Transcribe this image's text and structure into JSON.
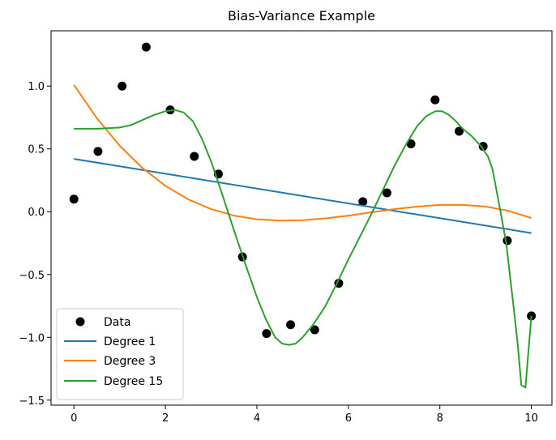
{
  "chart_data": {
    "type": "line",
    "title": "Bias-Variance Example",
    "xlabel": "",
    "ylabel": "",
    "xlim": [
      -0.5,
      10.45
    ],
    "ylim": [
      -1.54,
      1.44
    ],
    "grid": false,
    "legend_position": "lower-left",
    "x_ticks": [
      0,
      2,
      4,
      6,
      8,
      10
    ],
    "x_tick_labels": [
      "0",
      "2",
      "4",
      "6",
      "8",
      "10"
    ],
    "y_ticks": [
      1.0,
      0.5,
      0.0,
      -0.5,
      -1.0,
      -1.5
    ],
    "y_tick_labels": [
      "1.0",
      "0.5",
      "0.0",
      "−0.5",
      "−1.0",
      "−1.5"
    ],
    "scatter": {
      "name": "Data",
      "color": "#000000",
      "x": [
        0,
        0.526,
        1.053,
        1.579,
        2.105,
        2.632,
        3.158,
        3.684,
        4.211,
        4.737,
        5.263,
        5.789,
        6.316,
        6.842,
        7.368,
        7.895,
        8.421,
        8.947,
        9.474,
        10
      ],
      "y": [
        0.1,
        0.48,
        1.0,
        1.31,
        0.81,
        0.44,
        0.3,
        -0.36,
        -0.97,
        -0.9,
        -0.94,
        -0.57,
        0.08,
        0.15,
        0.54,
        0.89,
        0.64,
        0.52,
        -0.23,
        -0.83
      ]
    },
    "series": [
      {
        "name": "Degree 1",
        "color": "#1f77b4",
        "x": [
          0,
          10
        ],
        "y": [
          0.42,
          -0.17
        ]
      },
      {
        "name": "Degree 3",
        "color": "#ff7f0e",
        "x": [
          0,
          0.5,
          1,
          1.5,
          2,
          2.5,
          3,
          3.5,
          4,
          4.5,
          5,
          5.5,
          6,
          6.5,
          7,
          7.5,
          8,
          8.5,
          9,
          9.5,
          10
        ],
        "y": [
          1.01,
          0.745,
          0.525,
          0.347,
          0.206,
          0.098,
          0.02,
          -0.031,
          -0.06,
          -0.071,
          -0.068,
          -0.053,
          -0.031,
          -0.005,
          0.02,
          0.04,
          0.054,
          0.054,
          0.041,
          0.007,
          -0.05
        ]
      },
      {
        "name": "Degree 15",
        "color": "#2ca02c",
        "x": [
          0,
          0.5,
          1,
          1.25,
          1.5,
          1.75,
          2,
          2.2,
          2.4,
          2.6,
          2.8,
          3,
          3.25,
          3.5,
          3.75,
          4,
          4.2,
          4.4,
          4.55,
          4.7,
          4.85,
          5,
          5.25,
          5.5,
          5.75,
          6,
          6.25,
          6.5,
          6.75,
          7,
          7.25,
          7.5,
          7.7,
          7.9,
          8.05,
          8.2,
          8.35,
          8.5,
          8.7,
          8.9,
          9.05,
          9.15,
          9.3,
          9.45,
          9.6,
          9.7,
          9.78,
          9.87,
          10
        ],
        "y": [
          0.66,
          0.66,
          0.67,
          0.69,
          0.73,
          0.77,
          0.8,
          0.81,
          0.79,
          0.72,
          0.58,
          0.4,
          0.13,
          -0.15,
          -0.42,
          -0.68,
          -0.86,
          -1.0,
          -1.05,
          -1.06,
          -1.05,
          -1.0,
          -0.89,
          -0.75,
          -0.57,
          -0.38,
          -0.2,
          -0.02,
          0.17,
          0.36,
          0.53,
          0.68,
          0.76,
          0.8,
          0.8,
          0.77,
          0.72,
          0.66,
          0.6,
          0.52,
          0.44,
          0.34,
          0.05,
          -0.25,
          -0.72,
          -1.05,
          -1.38,
          -1.4,
          -0.83
        ]
      }
    ]
  }
}
